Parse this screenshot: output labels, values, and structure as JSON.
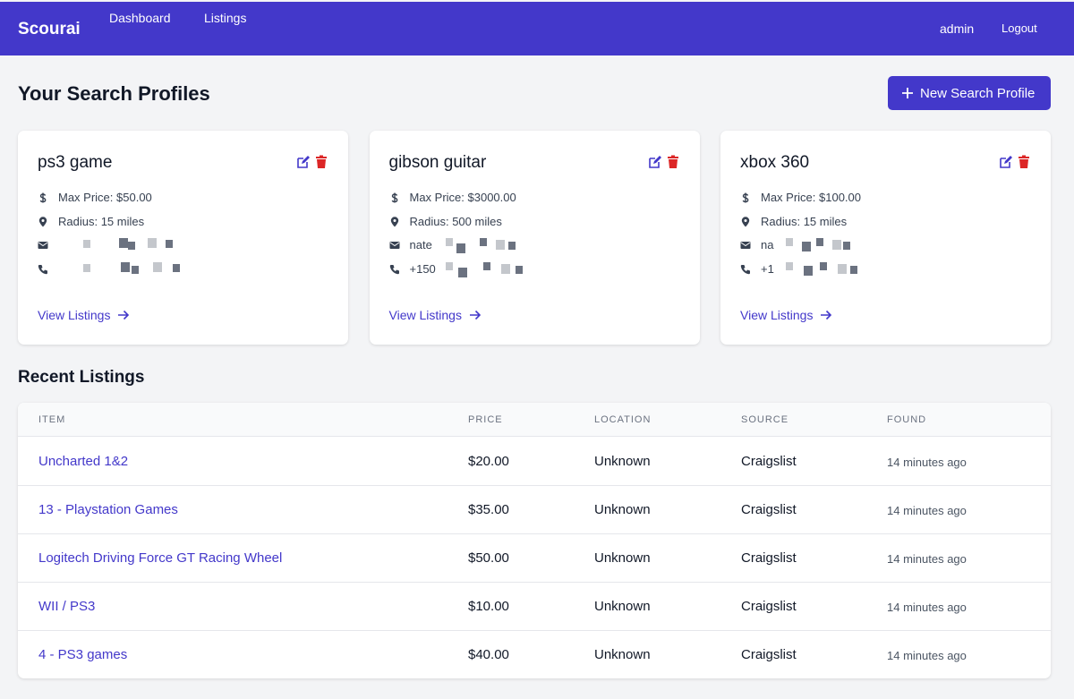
{
  "nav": {
    "brand": "Scourai",
    "links": [
      "Dashboard",
      "Listings"
    ],
    "user": "admin",
    "logout": "Logout"
  },
  "header": {
    "title": "Your Search Profiles",
    "button": "New Search Profile"
  },
  "profiles": [
    {
      "name": "ps3 game",
      "max_price": "Max Price: $50.00",
      "radius": "Radius: 15 miles",
      "link": "View Listings"
    },
    {
      "name": "gibson guitar",
      "max_price": "Max Price: $3000.00",
      "radius": "Radius: 500 miles",
      "email": "nate",
      "phone": "+150",
      "link": "View Listings"
    },
    {
      "name": "xbox 360",
      "max_price": "Max Price: $100.00",
      "radius": "Radius: 15 miles",
      "email": "na",
      "phone": "+1",
      "link": "View Listings"
    }
  ],
  "recent": {
    "title": "Recent Listings",
    "columns": [
      "ITEM",
      "PRICE",
      "LOCATION",
      "SOURCE",
      "FOUND"
    ],
    "rows": [
      [
        "Uncharted 1&2",
        "$20.00",
        "Unknown",
        "Craigslist",
        "14 minutes ago"
      ],
      [
        "13 - Playstation Games",
        "$35.00",
        "Unknown",
        "Craigslist",
        "14 minutes ago"
      ],
      [
        "Logitech Driving Force GT Racing Wheel",
        "$50.00",
        "Unknown",
        "Craigslist",
        "14 minutes ago"
      ],
      [
        "WII / PS3",
        "$10.00",
        "Unknown",
        "Craigslist",
        "14 minutes ago"
      ],
      [
        "4 - PS3 games",
        "$40.00",
        "Unknown",
        "Craigslist",
        "14 minutes ago"
      ]
    ]
  }
}
